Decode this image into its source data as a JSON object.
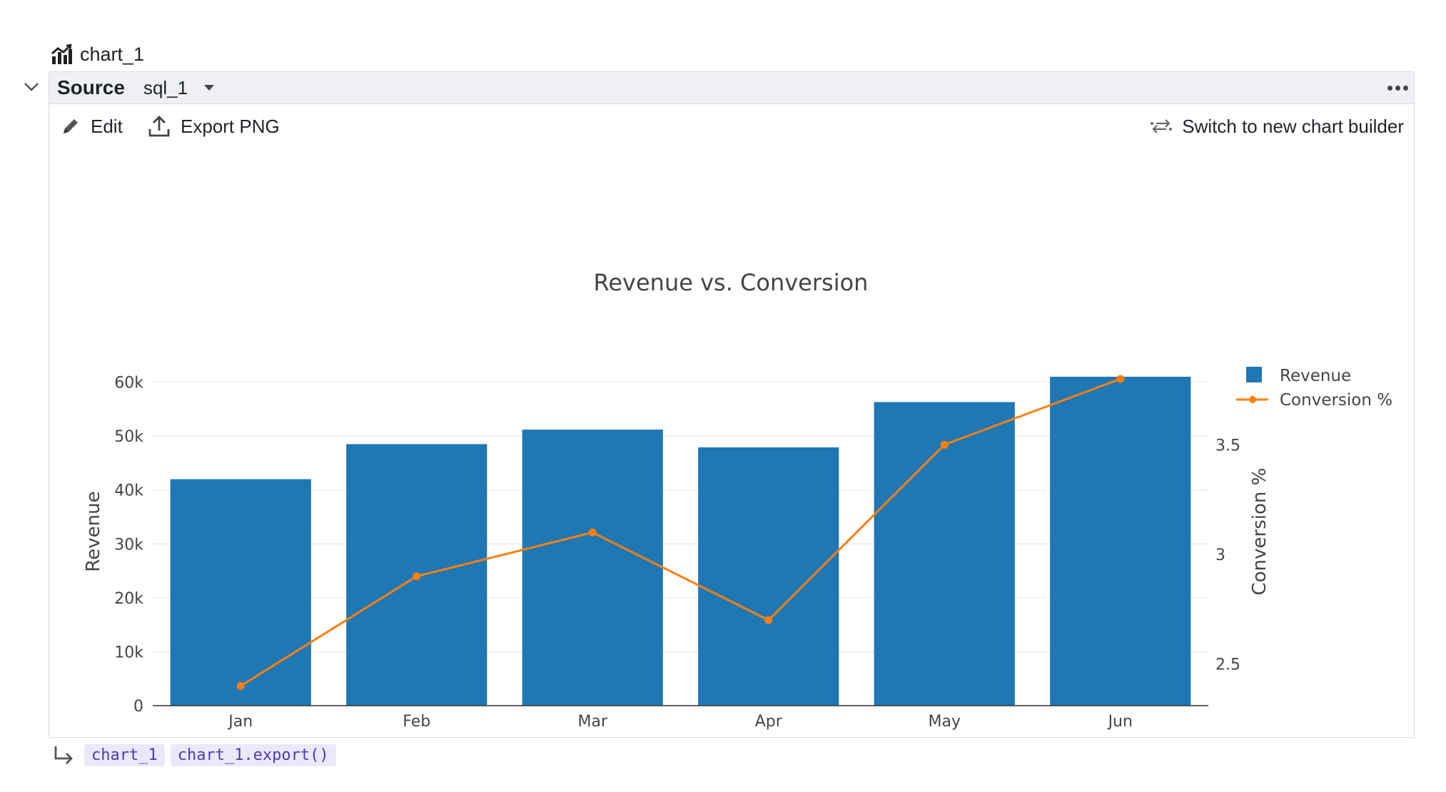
{
  "cell": {
    "name": "chart_1"
  },
  "panel": {
    "source_label": "Source",
    "source_value": "sql_1"
  },
  "toolbar": {
    "edit_label": "Edit",
    "export_label": "Export PNG",
    "switch_label": "Switch to new chart builder"
  },
  "outputs": [
    "chart_1",
    "chart_1.export()"
  ],
  "colors": {
    "bar": "#1f77b4",
    "line": "#ff7f0e",
    "accent": "#4b3bb3"
  },
  "chart_data": {
    "type": "bar",
    "title": "Revenue vs. Conversion",
    "categories": [
      "Jan",
      "Feb",
      "Mar",
      "Apr",
      "May",
      "Jun"
    ],
    "series": [
      {
        "name": "Revenue",
        "type": "bar",
        "axis": "left",
        "values": [
          42000,
          48500,
          51200,
          47900,
          56300,
          61000
        ]
      },
      {
        "name": "Conversion %",
        "type": "line",
        "axis": "right",
        "values": [
          2.4,
          2.9,
          3.1,
          2.7,
          3.5,
          3.8
        ]
      }
    ],
    "ylabel": "Revenue",
    "y2label": "Conversion %",
    "ylim": [
      0,
      61000
    ],
    "y2lim": [
      2.31,
      3.81
    ],
    "yticks": [
      0,
      10000,
      20000,
      30000,
      40000,
      50000,
      60000
    ],
    "ytick_labels": [
      "0",
      "10k",
      "20k",
      "30k",
      "40k",
      "50k",
      "60k"
    ],
    "y2ticks": [
      2.5,
      3,
      3.5
    ],
    "y2tick_labels": [
      "2.5",
      "3",
      "3.5"
    ],
    "legend_position": "top-right",
    "grid": true
  }
}
